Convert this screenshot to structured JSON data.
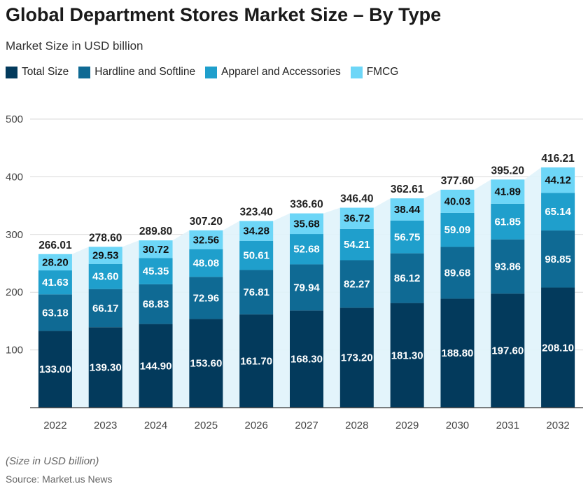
{
  "chart_data": {
    "type": "bar",
    "stacked": true,
    "title": "Global Department Stores Market Size – By Type",
    "subtitle": "Market Size in USD billion",
    "categories": [
      "2022",
      "2023",
      "2024",
      "2025",
      "2026",
      "2027",
      "2028",
      "2029",
      "2030",
      "2031",
      "2032"
    ],
    "series": [
      {
        "name": "Total Size",
        "color": "#033a5c",
        "values": [
          133.0,
          139.3,
          144.9,
          153.6,
          161.7,
          168.3,
          173.2,
          181.3,
          188.8,
          197.6,
          208.1
        ]
      },
      {
        "name": "Hardline and Softline",
        "color": "#0f6a94",
        "values": [
          63.18,
          66.17,
          68.83,
          72.96,
          76.81,
          79.94,
          82.27,
          86.12,
          89.68,
          93.86,
          98.85
        ]
      },
      {
        "name": "Apparel and Accessories",
        "color": "#1f9fcc",
        "values": [
          41.63,
          43.6,
          45.35,
          48.08,
          50.61,
          52.68,
          54.21,
          56.75,
          59.09,
          61.85,
          65.14
        ]
      },
      {
        "name": "FMCG",
        "color": "#6dd6f7",
        "values": [
          28.2,
          29.53,
          30.72,
          32.56,
          34.28,
          35.68,
          36.72,
          38.44,
          40.03,
          41.89,
          44.12
        ]
      }
    ],
    "totals": [
      "266.01",
      "278.60",
      "289.80",
      "307.20",
      "323.40",
      "336.60",
      "346.40",
      "362.61",
      "377.60",
      "395.20",
      "416.21"
    ],
    "ylim": [
      0,
      500
    ],
    "yticks": [
      100,
      200,
      300,
      400,
      500
    ],
    "grid": true,
    "legend": "top-left",
    "xlabel": "",
    "ylabel": ""
  },
  "footer": {
    "note": "(Size in USD billion)",
    "source": "Source: Market.us News"
  }
}
